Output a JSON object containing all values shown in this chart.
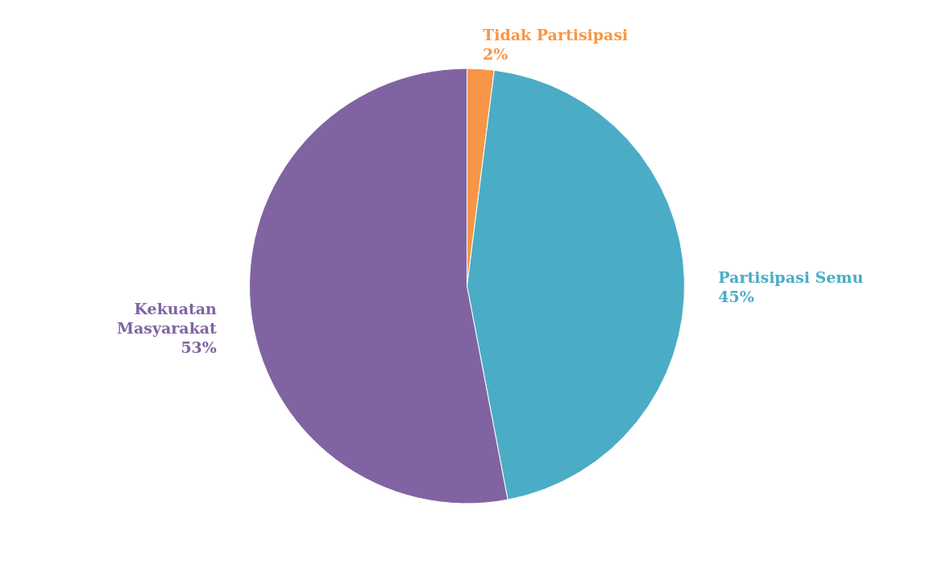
{
  "chart_data": {
    "type": "pie",
    "categories": [
      "Tidak Partisipasi",
      "Partisipasi Semu",
      "Kekuatan Masyarakat"
    ],
    "values": [
      2,
      45,
      53
    ],
    "colors": [
      "#f79646",
      "#4bacc6",
      "#8064a2"
    ],
    "value_labels": [
      "2%",
      "45%",
      "53%"
    ]
  }
}
